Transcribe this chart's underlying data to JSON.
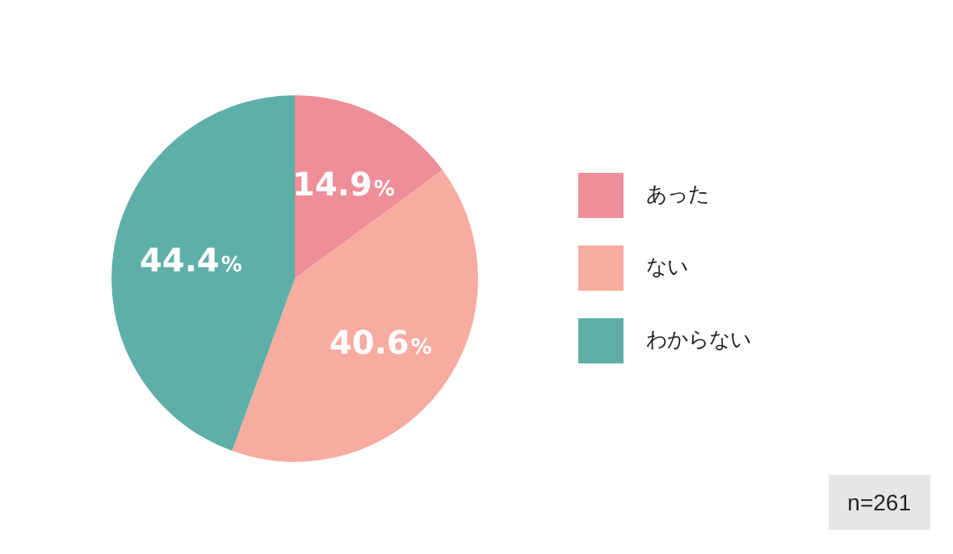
{
  "chart_data": {
    "type": "pie",
    "categories": [
      "あった",
      "ない",
      "わからない"
    ],
    "values": [
      14.9,
      40.6,
      44.4
    ],
    "colors": [
      "#ee8e99",
      "#f8aba0",
      "#5fafa9"
    ],
    "value_labels": [
      "14.9%",
      "40.6%",
      "44.4%"
    ],
    "legend": "right",
    "annotations": [
      "n=261"
    ]
  }
}
